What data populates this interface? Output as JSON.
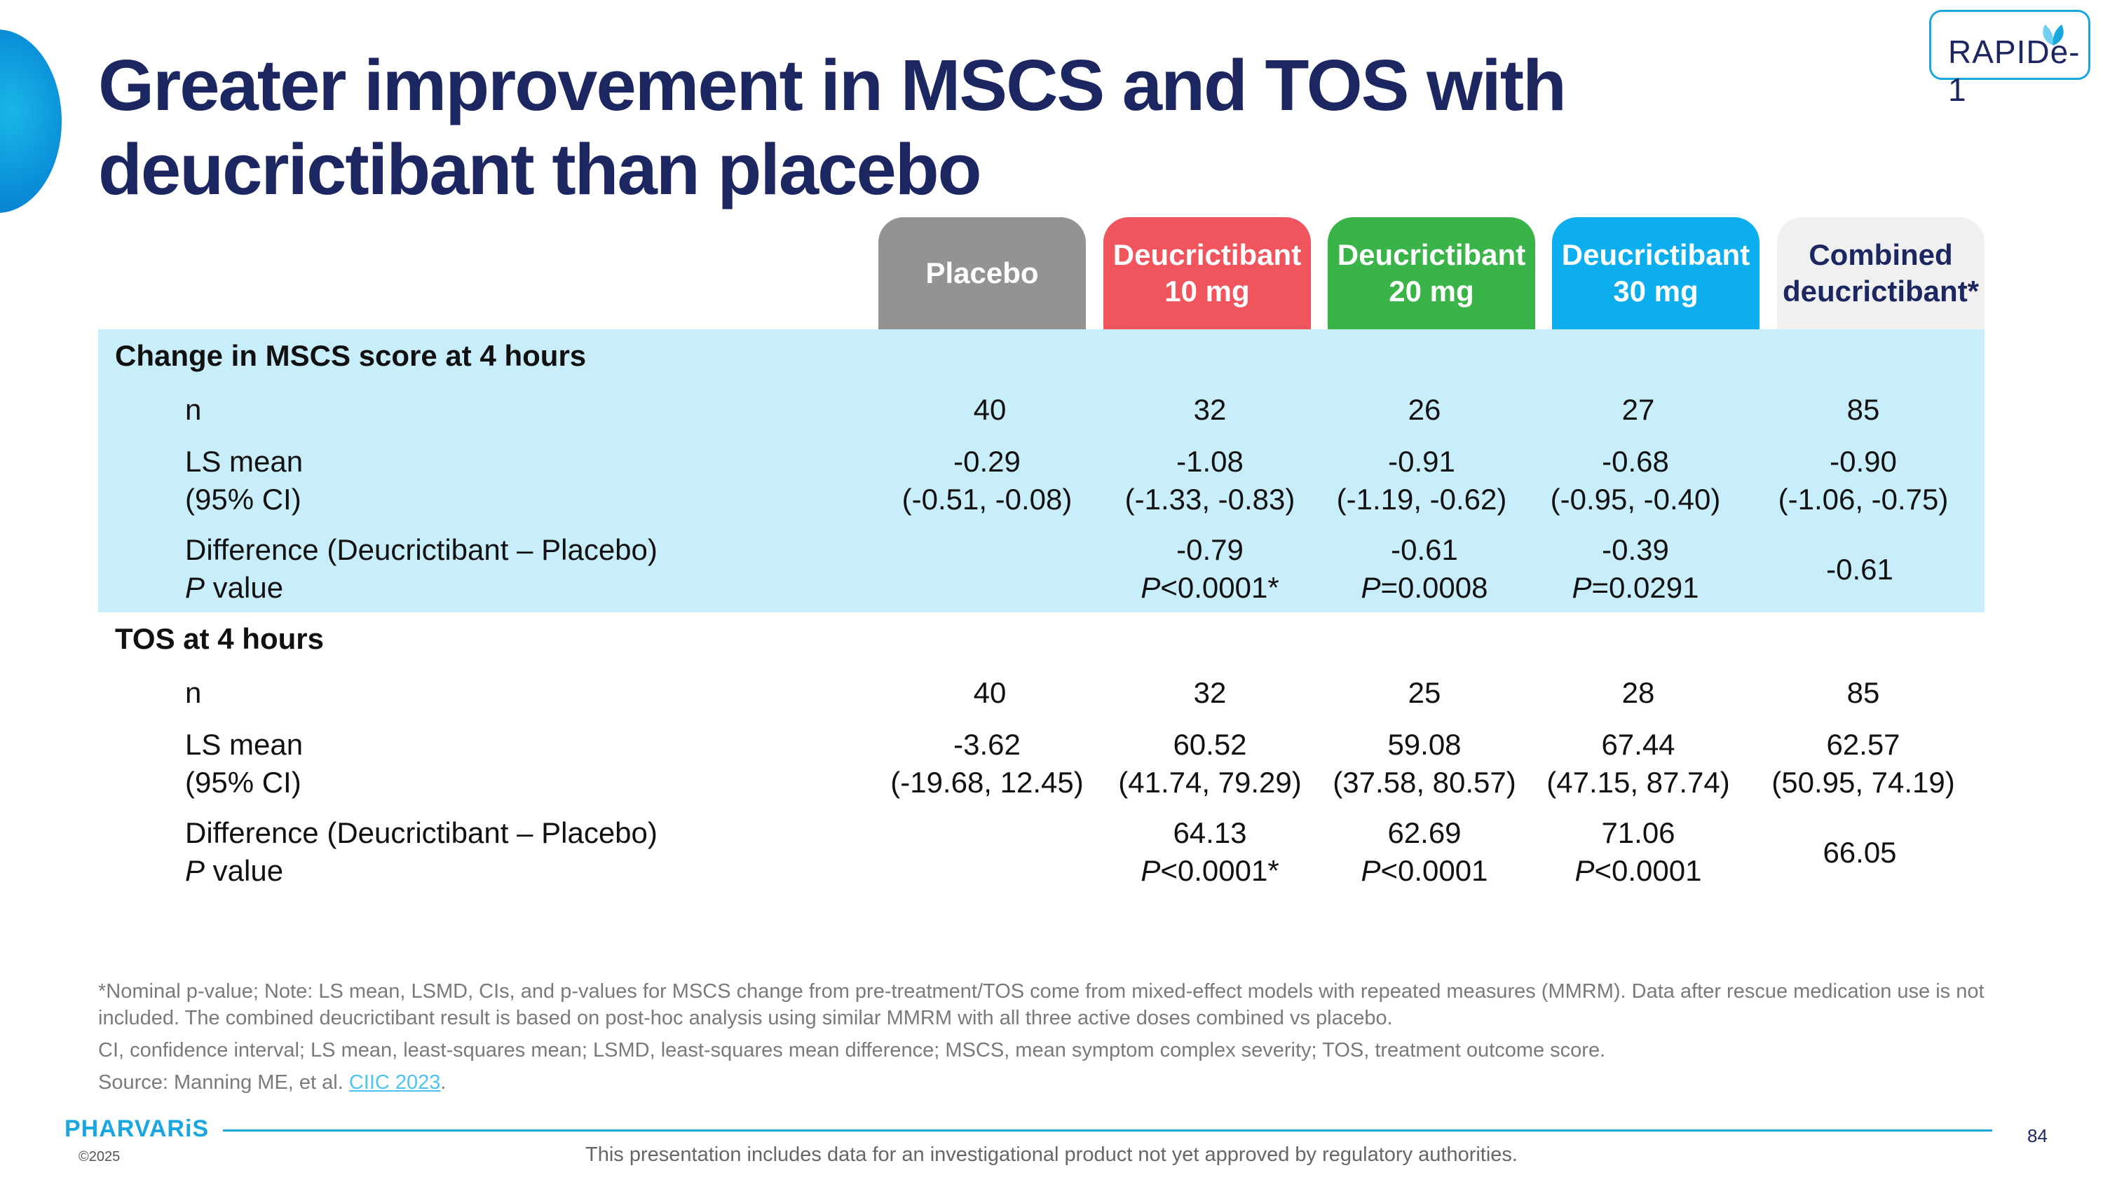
{
  "title": "Greater improvement in MSCS and TOS with deucrictibant than placebo",
  "logo": {
    "text": "RAPIDe-1",
    "icon": "leaf-icon"
  },
  "columns": [
    {
      "label": "Placebo",
      "color": "#939393"
    },
    {
      "label": "Deucrictibant\n10 mg",
      "color": "#f0545c"
    },
    {
      "label": "Deucrictibant\n20 mg",
      "color": "#3ab448"
    },
    {
      "label": "Deucrictibant\n30 mg",
      "color": "#0daeee"
    },
    {
      "label": "Combined\ndeucrictibant*",
      "color": "#f0f0f0"
    }
  ],
  "mscs": {
    "title": "Change in MSCS score at 4 hours",
    "n": {
      "label": "n",
      "values": [
        "40",
        "32",
        "26",
        "27",
        "85"
      ]
    },
    "ls_mean": {
      "label1": "LS mean",
      "label2": "(95% CI)",
      "values": [
        "-0.29",
        "-1.08",
        "-0.91",
        "-0.68",
        "-0.90"
      ],
      "ci": [
        "(-0.51, -0.08)",
        "(-1.33, -0.83)",
        "(-1.19, -0.62)",
        "(-0.95, -0.40)",
        "(-1.06, -0.75)"
      ]
    },
    "difference": {
      "label1": "Difference (Deucrictibant – Placebo)",
      "label2_italic": "P",
      "label2_rest": " value",
      "values": [
        "-0.79",
        "-0.61",
        "-0.39",
        "-0.61"
      ],
      "p_prefix": [
        "P",
        "P",
        "P"
      ],
      "p_rest": [
        "<0.0001*",
        "=0.0008",
        "=0.0291"
      ]
    }
  },
  "tos": {
    "title": "TOS at 4 hours",
    "n": {
      "label": "n",
      "values": [
        "40",
        "32",
        "25",
        "28",
        "85"
      ]
    },
    "ls_mean": {
      "label1": "LS mean",
      "label2": "(95% CI)",
      "values": [
        "-3.62",
        "60.52",
        "59.08",
        "67.44",
        "62.57"
      ],
      "ci": [
        "(-19.68, 12.45)",
        "(41.74, 79.29)",
        "(37.58, 80.57)",
        "(47.15, 87.74)",
        "(50.95, 74.19)"
      ]
    },
    "difference": {
      "label1": "Difference (Deucrictibant – Placebo)",
      "label2_italic": "P",
      "label2_rest": " value",
      "values": [
        "64.13",
        "62.69",
        "71.06",
        "66.05"
      ],
      "p_prefix": [
        "P",
        "P",
        "P"
      ],
      "p_rest": [
        "<0.0001*",
        "<0.0001",
        "<0.0001"
      ]
    }
  },
  "footnotes": {
    "line1": "*Nominal p-value; Note: LS mean, LSMD, CIs, and p-values for MSCS change from pre-treatment/TOS come from mixed-effect models with repeated measures (MMRM). Data after rescue medication use is not included. The combined deucrictibant result is based on post-hoc analysis using similar MMRM with all three active doses combined vs placebo.",
    "line2": "CI, confidence interval; LS mean, least-squares mean; LSMD, least-squares mean difference; MSCS, mean symptom complex severity; TOS, treatment outcome score.",
    "source_prefix": "Source: Manning ME, et al. ",
    "source_link": "CIIC 2023",
    "source_suffix": "."
  },
  "footer": {
    "brand": "PHARVARiS",
    "copyright": "©2025",
    "page_number": "84",
    "disclaimer": "This presentation includes data for an investigational product not yet approved by regulatory authorities."
  },
  "colors": {
    "title": "#1c2661",
    "band": "#c8eefb",
    "accent": "#1aa7e0"
  }
}
